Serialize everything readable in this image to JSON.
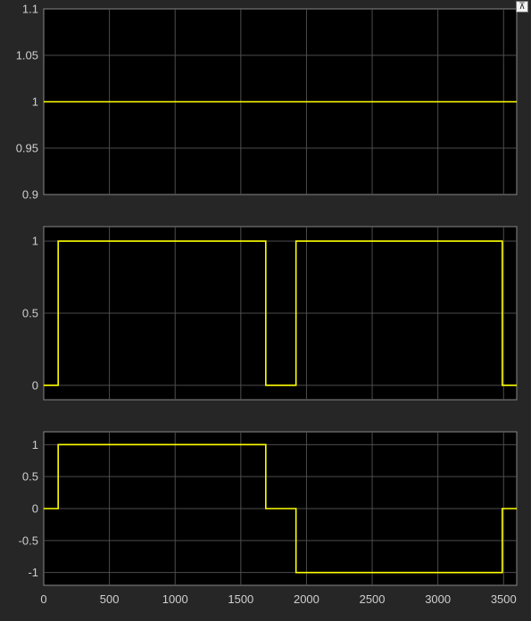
{
  "chart_data": [
    {
      "type": "line",
      "xlim": [
        0,
        3600
      ],
      "ylim": [
        0.9,
        1.1
      ],
      "yticks": [
        0.9,
        0.95,
        1,
        1.05,
        1.1
      ],
      "ytick_labels": [
        "0.9",
        "0.95",
        "1",
        "1.05",
        "1.1"
      ],
      "xticks": [
        0,
        500,
        1000,
        1500,
        2000,
        2500,
        3000,
        3500
      ],
      "xtick_labels": [],
      "grid": true,
      "colors": {
        "line": "#ffff00",
        "background": "#000000",
        "grid": "#4d4d4d"
      },
      "series": [
        {
          "x": [
            0,
            3600
          ],
          "y": [
            1,
            1
          ]
        }
      ]
    },
    {
      "type": "line",
      "xlim": [
        0,
        3600
      ],
      "ylim": [
        -0.1,
        1.1
      ],
      "yticks": [
        0,
        0.5,
        1
      ],
      "ytick_labels": [
        "0",
        "0.5",
        "1"
      ],
      "xticks": [
        0,
        500,
        1000,
        1500,
        2000,
        2500,
        3000,
        3500
      ],
      "xtick_labels": [],
      "grid": true,
      "colors": {
        "line": "#ffff00",
        "background": "#000000",
        "grid": "#4d4d4d"
      },
      "series": [
        {
          "x": [
            0,
            110,
            110,
            1690,
            1690,
            1920,
            1920,
            3490,
            3490,
            3600
          ],
          "y": [
            0,
            0,
            1,
            1,
            0,
            0,
            1,
            1,
            0,
            0
          ]
        }
      ]
    },
    {
      "type": "line",
      "xlim": [
        0,
        3600
      ],
      "ylim": [
        -1.2,
        1.2
      ],
      "yticks": [
        -1,
        -0.5,
        0,
        0.5,
        1
      ],
      "ytick_labels": [
        "-1",
        "-0.5",
        "0",
        "0.5",
        "1"
      ],
      "xticks": [
        0,
        500,
        1000,
        1500,
        2000,
        2500,
        3000,
        3500
      ],
      "xtick_labels": [
        "0",
        "500",
        "1000",
        "1500",
        "2000",
        "2500",
        "3000",
        "3500"
      ],
      "grid": true,
      "colors": {
        "line": "#ffff00",
        "background": "#000000",
        "grid": "#4d4d4d"
      },
      "series": [
        {
          "x": [
            0,
            110,
            110,
            1690,
            1690,
            1920,
            1920,
            3490,
            3490,
            3600
          ],
          "y": [
            0,
            0,
            1,
            1,
            0,
            0,
            -1,
            -1,
            0,
            0
          ]
        }
      ]
    }
  ],
  "toolbar": {
    "corner_icon": "⊼"
  }
}
